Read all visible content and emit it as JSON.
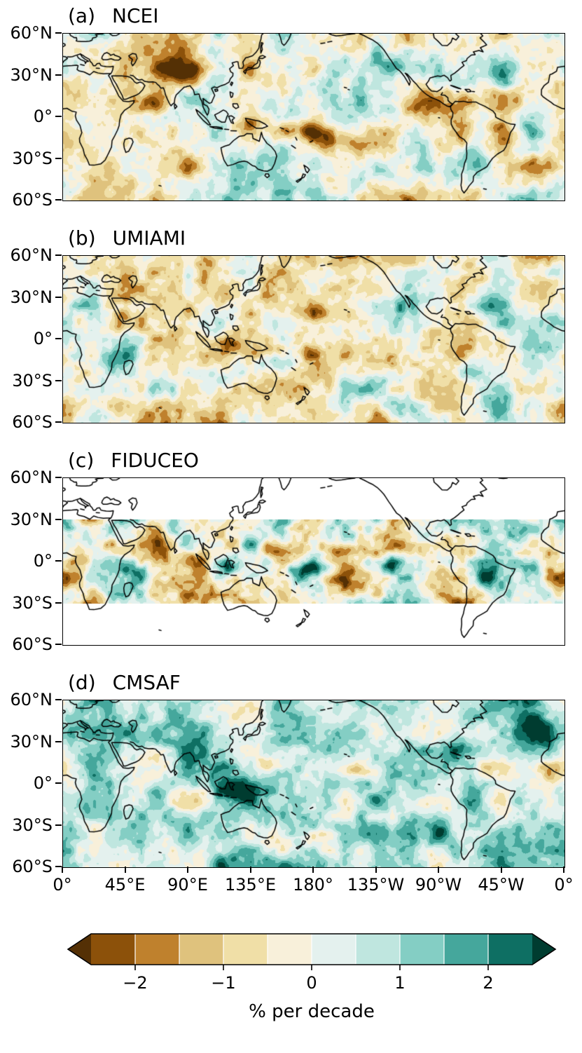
{
  "figure": {
    "panels": [
      {
        "label": "(a)",
        "name": "NCEI"
      },
      {
        "label": "(b)",
        "name": "UMIAMI"
      },
      {
        "label": "(c)",
        "name": "FIDUCEO"
      },
      {
        "label": "(d)",
        "name": "CMSAF"
      }
    ],
    "y_ticks": [
      "60°N",
      "30°N",
      "0°",
      "30°S",
      "60°S"
    ],
    "x_ticks": [
      "0°",
      "45°E",
      "90°E",
      "135°E",
      "180°",
      "135°W",
      "90°W",
      "45°W",
      "0°"
    ],
    "colorbar": {
      "label": "% per decade",
      "ticks": [
        "−2",
        "−1",
        "0",
        "1",
        "2"
      ],
      "tick_values": [
        -2,
        -1,
        0,
        1,
        2
      ],
      "levels": [
        -2.5,
        -2,
        -1.5,
        -1,
        -0.5,
        0,
        0.5,
        1,
        1.5,
        2,
        2.5
      ],
      "extend": "both",
      "colormap": "BrBG",
      "colors": [
        "#543005",
        "#8c510a",
        "#bf812d",
        "#dfc27d",
        "#f0dfa7",
        "#f8f0da",
        "#e4f1ee",
        "#bfe6df",
        "#84cec4",
        "#45a79c",
        "#0e6f63",
        "#003c30"
      ]
    }
  },
  "chart_data": {
    "type": "heatmap",
    "subtype": "filled-contour global trend maps",
    "title": "",
    "units": "% per decade",
    "panels": [
      {
        "label": "(a)",
        "dataset": "NCEI",
        "lat_coverage": [
          -60,
          60
        ],
        "summary": "Mostly weak mixed trends; strong brown (negative) maxima near the Tibetan Plateau (~90°E, 30°N), along the SPCZ diagonal (160°E–150°W, 5–25°S), over the Maritime Continent and tropical South America (~75°W, 10°S); scattered weak teal patches elsewhere."
      },
      {
        "label": "(b)",
        "dataset": "UMIAMI",
        "lat_coverage": [
          -60,
          60
        ],
        "summary": "Stronger brown anomalies over the Maritime Continent (~120°E, 0°), SPCZ, central tropical North Pacific (~180°, 20°N; ~145°W, 13°N) and tropical South America; teal patches in the subtropics and western Atlantic."
      },
      {
        "label": "(c)",
        "dataset": "FIDUCEO",
        "lat_coverage": [
          -30,
          30
        ],
        "summary": "Coverage restricted to 30°S–30°N (white poleward of 30°); strong teal (positive) over the Maritime Continent, equatorial central/eastern Pacific and tropical Atlantic; brown bands near 5–15°N in the central and eastern Pacific."
      },
      {
        "label": "(d)",
        "dataset": "CMSAF",
        "lat_coverage": [
          -60,
          60
        ],
        "summary": "Predominantly teal (positive trends) everywhere, strongest over the Maritime Continent, Caribbean/Gulf of Mexico and North Atlantic; only small brown patches in the central tropical Pacific."
      }
    ],
    "x_axis": {
      "ticks": [
        "0°",
        "45°E",
        "90°E",
        "135°E",
        "180°",
        "135°W",
        "90°W",
        "45°W",
        "0°"
      ],
      "range_deg": [
        0,
        360
      ]
    },
    "y_axis": {
      "ticks": [
        "60°N",
        "30°N",
        "0°",
        "30°S",
        "60°S"
      ],
      "range_deg": [
        -60,
        60
      ]
    },
    "colorbar": {
      "label": "% per decade",
      "tick_values": [
        -2,
        -1,
        0,
        1,
        2
      ],
      "levels": [
        -2.5,
        -2,
        -1.5,
        -1,
        -0.5,
        0,
        0.5,
        1,
        1.5,
        2,
        2.5
      ],
      "extend": "both",
      "colormap": "BrBG"
    }
  }
}
